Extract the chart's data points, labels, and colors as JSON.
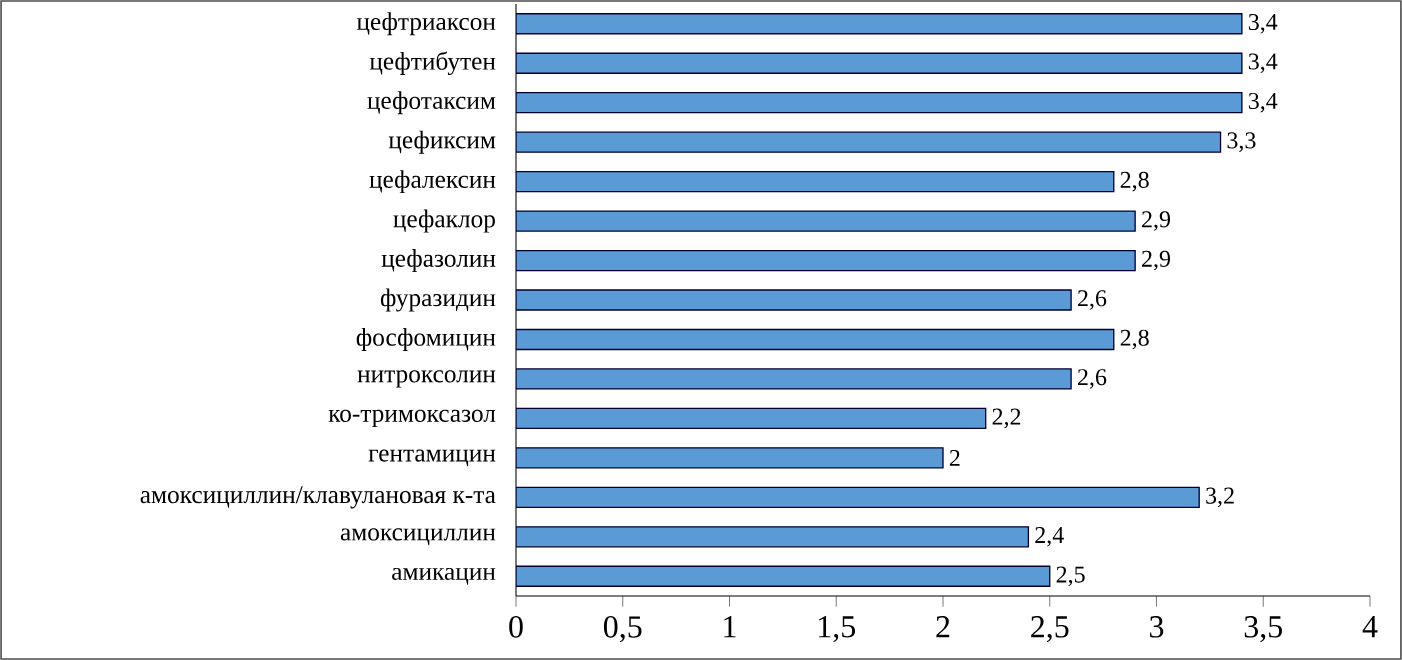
{
  "chart_data": {
    "type": "bar",
    "orientation": "horizontal",
    "categories": [
      "цефтриаксон",
      "цефтибутен",
      "цефотаксим",
      "цефиксим",
      "цефалексин",
      "цефаклор",
      "цефазолин",
      "фуразидин",
      "фосфомицин",
      "нитроксолин",
      "ко-тримоксазол",
      "гентамицин",
      "амоксициллин/клавулановая  к-та",
      "амоксициллин",
      "амикацин"
    ],
    "values": [
      3.4,
      3.4,
      3.4,
      3.3,
      2.8,
      2.9,
      2.9,
      2.6,
      2.8,
      2.6,
      2.2,
      2,
      3.2,
      2.4,
      2.5
    ],
    "value_labels": [
      "3,4",
      "3,4",
      "3,4",
      "3,3",
      "2,8",
      "2,9",
      "2,9",
      "2,6",
      "2,8",
      "2,6",
      "2,2",
      "2",
      "3,2",
      "2,4",
      "2,5"
    ],
    "color": "#5b9bd5",
    "xlim": [
      0,
      4
    ],
    "xticks": [
      0,
      {
        "value": 0.5,
        "label": "0,5"
      },
      1,
      {
        "value": 1.5,
        "label": "1,5"
      },
      2,
      {
        "value": 2.5,
        "label": "2,5"
      },
      3,
      {
        "value": 3.5,
        "label": "3,5"
      },
      4
    ]
  }
}
